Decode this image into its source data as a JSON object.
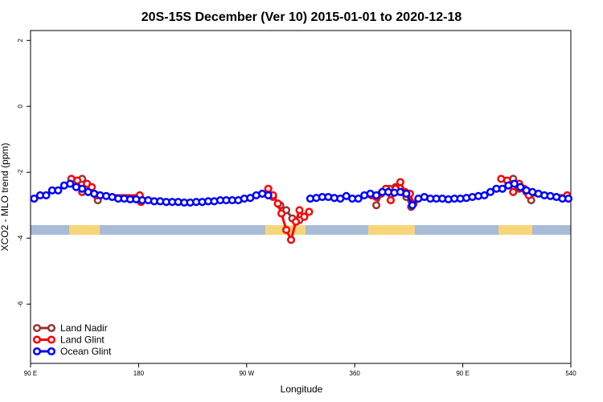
{
  "chart_data": {
    "type": "line",
    "title": "20S-15S December (Ver 10)   2015-01-01 to 2020-12-18",
    "x_label": "Longitude",
    "y_label": "XCO2 - MLO trend (ppm)",
    "xlim": [
      90,
      540
    ],
    "ylim": [
      -7.8,
      2.3
    ],
    "xticks": [
      {
        "value": 90,
        "label": "90 E"
      },
      180,
      {
        "value": 270,
        "label": "90 W"
      },
      360,
      {
        "value": 450,
        "label": "90 E"
      },
      540
    ],
    "yticks": [
      2,
      0,
      -2,
      -4,
      -6
    ],
    "legend": "bottom-left",
    "series": [
      {
        "name": "Land Nadir",
        "color": "#993333",
        "x": [
          133,
          140,
          146,
          200,
          292,
          298,
          303,
          308,
          314,
          350,
          378,
          383,
          389,
          394,
          399,
          403,
          407,
          450,
          492,
          497,
          503,
          507
        ],
        "values": [
          -2.2,
          -2.5,
          -2.85,
          null,
          -2.75,
          -3.0,
          -3.15,
          -3.4,
          -3.45,
          null,
          -3.0,
          -2.6,
          -2.5,
          -2.45,
          -2.6,
          -2.75,
          -3.05,
          null,
          -2.2,
          -2.5,
          -2.6,
          -2.85
        ]
      },
      {
        "name": "Land Glint",
        "color": "#ff0000",
        "x": [
          124,
          129,
          133,
          137,
          141,
          145,
          181,
          182,
          230,
          288,
          292,
          296,
          299,
          303,
          307,
          311,
          314,
          318,
          322,
          350,
          374,
          378,
          382,
          386,
          390,
          394,
          398,
          402,
          406,
          409,
          440,
          482,
          487,
          492,
          497,
          501,
          505,
          537
        ],
        "values": [
          -2.2,
          -2.25,
          -2.6,
          -2.35,
          -2.45,
          -2.7,
          -2.7,
          -2.9,
          null,
          -2.5,
          -2.7,
          -2.95,
          -3.25,
          -3.75,
          -4.05,
          -3.5,
          -3.15,
          -3.35,
          -3.2,
          null,
          -2.7,
          -2.75,
          -2.65,
          -2.5,
          -2.85,
          -2.5,
          -2.3,
          -2.6,
          -2.65,
          -2.95,
          null,
          -2.2,
          -2.25,
          -2.6,
          -2.35,
          -2.5,
          -2.7,
          -2.7
        ]
      },
      {
        "name": "Ocean Glint",
        "color": "#0000ff",
        "x": [
          93,
          98,
          103,
          108,
          113,
          118,
          123,
          128,
          133,
          138,
          143,
          148,
          153,
          158,
          163,
          168,
          173,
          178,
          183,
          188,
          193,
          198,
          203,
          208,
          213,
          218,
          223,
          228,
          233,
          238,
          243,
          248,
          253,
          258,
          263,
          268,
          273,
          278,
          283,
          288,
          300,
          323,
          328,
          333,
          338,
          343,
          348,
          353,
          358,
          363,
          368,
          373,
          378,
          383,
          388,
          393,
          398,
          403,
          408,
          413,
          418,
          423,
          428,
          433,
          438,
          443,
          448,
          453,
          458,
          463,
          468,
          473,
          478,
          483,
          488,
          493,
          498,
          503,
          508,
          513,
          518,
          523,
          528,
          533,
          538
        ],
        "values": [
          -2.8,
          -2.7,
          -2.7,
          -2.55,
          -2.55,
          -2.4,
          -2.35,
          -2.45,
          -2.5,
          -2.6,
          -2.65,
          -2.7,
          -2.72,
          -2.75,
          -2.8,
          -2.8,
          -2.82,
          -2.82,
          -2.85,
          -2.85,
          -2.88,
          -2.88,
          -2.9,
          -2.9,
          -2.9,
          -2.92,
          -2.92,
          -2.9,
          -2.9,
          -2.88,
          -2.88,
          -2.85,
          -2.85,
          -2.85,
          -2.85,
          -2.8,
          -2.78,
          -2.7,
          -2.65,
          -2.7,
          null,
          -2.8,
          -2.78,
          -2.75,
          -2.75,
          -2.78,
          -2.8,
          -2.72,
          -2.8,
          -2.8,
          -2.7,
          -2.65,
          -2.7,
          -2.6,
          -2.6,
          -2.62,
          -2.6,
          -2.65,
          -3.0,
          -2.8,
          -2.75,
          -2.8,
          -2.8,
          -2.8,
          -2.82,
          -2.8,
          -2.8,
          -2.78,
          -2.75,
          -2.72,
          -2.7,
          -2.6,
          -2.5,
          -2.5,
          -2.4,
          -2.35,
          -2.45,
          -2.55,
          -2.6,
          -2.65,
          -2.7,
          -2.72,
          -2.75,
          -2.8,
          -2.8
        ]
      }
    ]
  }
}
